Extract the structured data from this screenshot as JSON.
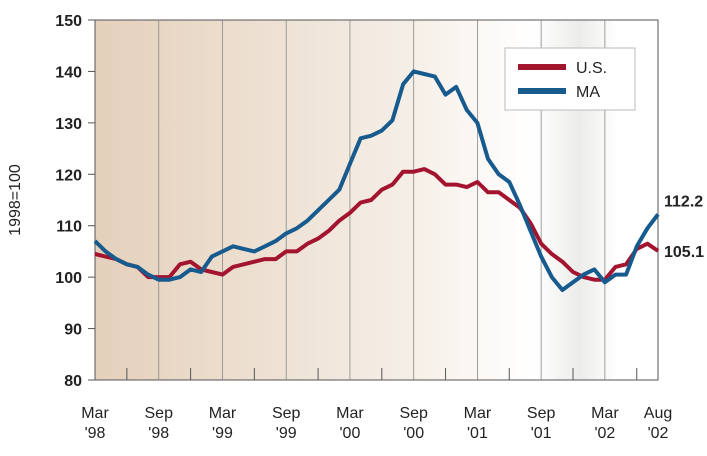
{
  "chart_data": {
    "type": "line",
    "y_label": "1998=100",
    "categories": [
      "Mar '98",
      null,
      null,
      null,
      null,
      null,
      "Sep '98",
      null,
      null,
      null,
      null,
      null,
      "Mar '99",
      null,
      null,
      null,
      null,
      null,
      "Sep '99",
      null,
      null,
      null,
      null,
      null,
      "Mar '00",
      null,
      null,
      null,
      null,
      null,
      "Sep '00",
      null,
      null,
      null,
      null,
      null,
      "Mar '01",
      null,
      null,
      null,
      null,
      null,
      "Sep '01",
      null,
      null,
      null,
      null,
      null,
      "Mar '02",
      null,
      null,
      null,
      null,
      "Aug '02"
    ],
    "series": [
      {
        "name": "U.S.",
        "color": "#a3142f",
        "values": [
          104.5,
          104,
          103.5,
          102.5,
          102,
          100,
          100,
          100,
          102.5,
          103,
          101.5,
          101,
          100.5,
          102,
          102.5,
          103,
          103.5,
          103.5,
          105,
          105,
          106.5,
          107.5,
          109,
          111,
          112.5,
          114.5,
          115,
          117,
          118,
          120.5,
          120.5,
          121,
          120,
          118,
          118,
          117.5,
          118.5,
          116.5,
          116.5,
          115,
          113.5,
          110.5,
          106.5,
          104.5,
          103,
          101,
          100,
          99.5,
          99.5,
          102,
          102.5,
          105.5,
          106.5,
          105.1
        ]
      },
      {
        "name": "MA",
        "color": "#175b8e",
        "values": [
          107,
          105,
          103.5,
          102.5,
          102,
          100.5,
          99.5,
          99.5,
          100,
          101.5,
          101,
          104,
          105,
          106,
          105.5,
          105,
          106,
          107,
          108.5,
          109.5,
          111,
          113,
          115,
          117,
          122,
          127,
          127.5,
          128.5,
          130.5,
          137.5,
          140,
          139.5,
          139,
          135.5,
          137,
          132.5,
          130,
          123,
          120,
          118.5,
          114,
          109,
          104,
          100,
          97.5,
          99,
          100.5,
          101.5,
          99,
          100.5,
          100.5,
          106,
          109.5,
          112.2
        ]
      }
    ],
    "ylim": [
      80,
      150
    ],
    "yticks": [
      80,
      90,
      100,
      110,
      120,
      130,
      140,
      150
    ],
    "legend": "top-right"
  }
}
